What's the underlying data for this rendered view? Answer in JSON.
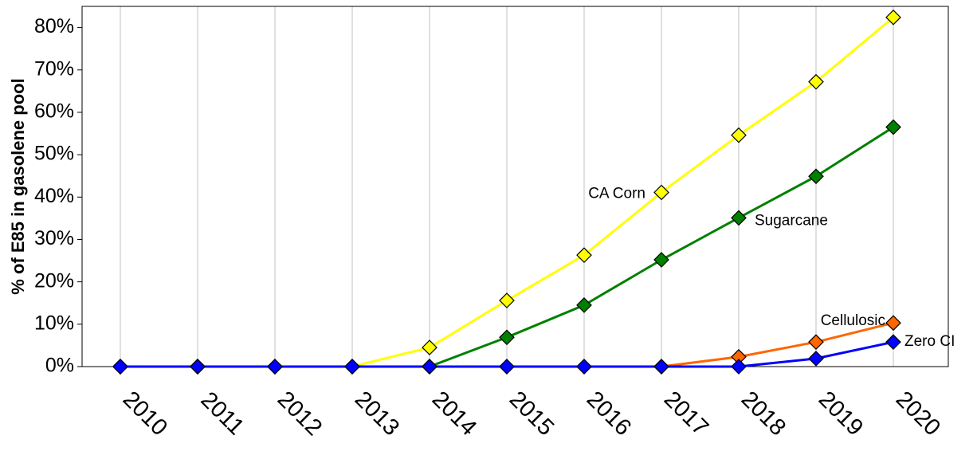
{
  "chart_data": {
    "type": "line",
    "y_label": "% of E85 in gasolene pool",
    "categories": [
      "2010",
      "2011",
      "2012",
      "2013",
      "2014",
      "2015",
      "2016",
      "2017",
      "2018",
      "2019",
      "2020"
    ],
    "series": [
      {
        "name": "CA Corn",
        "color": "#ffff00",
        "values": [
          0,
          0,
          0,
          0,
          4.5,
          15.6,
          26.3,
          41.1,
          54.6,
          67.2,
          82.4
        ]
      },
      {
        "name": "Sugarcane",
        "color": "#008000",
        "values": [
          0,
          0,
          0,
          0,
          0,
          6.9,
          14.5,
          25.2,
          35.1,
          44.9,
          56.5
        ]
      },
      {
        "name": "Cellulosic",
        "color": "#ff6600",
        "values": [
          0,
          0,
          0,
          0,
          0,
          0,
          0,
          0,
          2.3,
          5.8,
          10.3
        ]
      },
      {
        "name": "Zero CI",
        "color": "#0000ff",
        "values": [
          0,
          0,
          0,
          0,
          0,
          0,
          0,
          0,
          0,
          1.9,
          5.8
        ]
      }
    ],
    "ylim": [
      0,
      85
    ],
    "yticks": [
      {
        "value": 0,
        "label": "0%"
      },
      {
        "value": 10,
        "label": "10%"
      },
      {
        "value": 20,
        "label": "20%"
      },
      {
        "value": 30,
        "label": "30%"
      },
      {
        "value": 40,
        "label": "40%"
      },
      {
        "value": 50,
        "label": "50%"
      },
      {
        "value": 60,
        "label": "60%"
      },
      {
        "value": 70,
        "label": "70%"
      },
      {
        "value": 80,
        "label": "80%"
      }
    ],
    "grid": "x"
  }
}
